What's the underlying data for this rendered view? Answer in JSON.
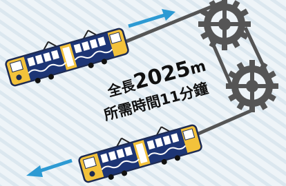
{
  "length": {
    "label": "全長",
    "value": 2025,
    "unit": "m"
  },
  "duration": "所需時間11分鐘"
}
